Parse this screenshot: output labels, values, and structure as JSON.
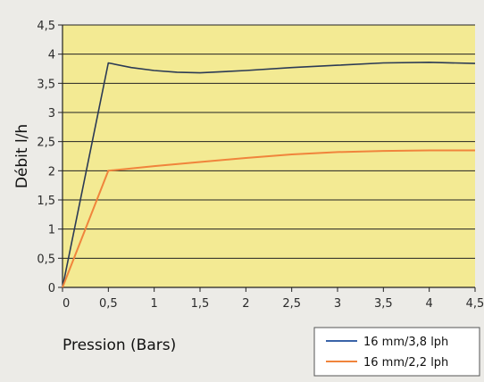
{
  "chart_data": {
    "type": "line",
    "title": "",
    "xlabel": "Pression (Bars)",
    "ylabel": "Débit l/h",
    "xlim": [
      0,
      4.5
    ],
    "ylim": [
      0,
      4.5
    ],
    "x_ticks": [
      "0",
      "0,5",
      "1",
      "1,5",
      "2",
      "2,5",
      "3",
      "3,5",
      "4",
      "4,5"
    ],
    "y_ticks": [
      "0",
      "0,5",
      "1",
      "1,5",
      "2",
      "2,5",
      "3",
      "3,5",
      "4",
      "4,5"
    ],
    "grid": "horizontal",
    "legend_position": "bottom-right",
    "background_color": "#f3ea93",
    "series": [
      {
        "name": "16 mm/3,8 lph",
        "color": "#2b3a55",
        "legend_color": "#3a63a8",
        "x": [
          0,
          0.5,
          0.75,
          1.0,
          1.25,
          1.5,
          1.75,
          2.0,
          2.5,
          3.0,
          3.5,
          4.0,
          4.5
        ],
        "y": [
          0,
          3.85,
          3.77,
          3.72,
          3.69,
          3.68,
          3.7,
          3.72,
          3.77,
          3.81,
          3.85,
          3.86,
          3.84
        ]
      },
      {
        "name": "16 mm/2,2 lph",
        "color": "#f0843c",
        "legend_color": "#f0843c",
        "x": [
          0,
          0.5,
          1.0,
          1.5,
          2.0,
          2.5,
          3.0,
          3.5,
          4.0,
          4.5
        ],
        "y": [
          0,
          2.0,
          2.08,
          2.15,
          2.22,
          2.28,
          2.32,
          2.34,
          2.35,
          2.35
        ]
      }
    ]
  }
}
